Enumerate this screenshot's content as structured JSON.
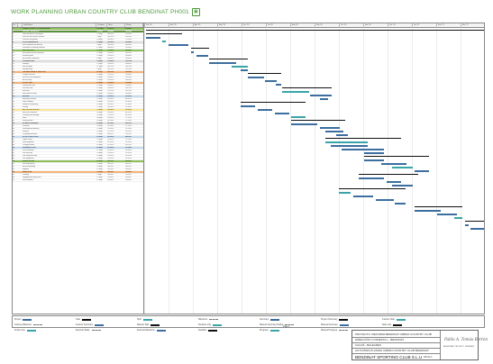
{
  "header": {
    "title": "WORK PLANNING URBAN COUNTRY CLUB BENDINAT PH001",
    "logo_glyph": "▣"
  },
  "columns": [
    "Id",
    "",
    "Task Name",
    "Duration",
    "Start",
    "Finish"
  ],
  "months": [
    "Feb '20",
    "Mar '20",
    "Apr '20",
    "May '20",
    "Jun '20",
    "Jul '20",
    "Aug '20",
    "Sep '20",
    "Oct '20",
    "Nov '20",
    "Dec '20",
    "Jan '21",
    "Feb '21",
    "Mar '21"
  ],
  "tasks": [
    {
      "id": "1",
      "name": "URBAN COUNTRY CLUB BENDINAT",
      "dur": "320 days",
      "start": "03/02/20",
      "end": "30/04/21",
      "style": "hl-green"
    },
    {
      "id": "2",
      "name": "PROJECT INITIATION",
      "dur": "34 days",
      "start": "03/02/20",
      "end": "19/03/20",
      "style": "hl-dgreen"
    },
    {
      "id": "3",
      "name": "Final execution of the project",
      "dur": "15 days",
      "start": "03/02/20",
      "end": "21/02/20",
      "style": ""
    },
    {
      "id": "4",
      "name": "Final fee and contract revision",
      "dur": "5 days",
      "start": "24/02/20",
      "end": "28/02/20",
      "style": ""
    },
    {
      "id": "5",
      "name": "Licences and permits",
      "dur": "20 days",
      "start": "02/03/20",
      "end": "27/03/20",
      "style": ""
    },
    {
      "id": "6",
      "name": "SITE PREPARATION",
      "dur": "18 days",
      "start": "30/03/20",
      "end": "22/04/20",
      "style": "hl-grey"
    },
    {
      "id": "7",
      "name": "Site installation and fencing",
      "dur": "5 days",
      "start": "30/03/20",
      "end": "03/04/20",
      "style": ""
    },
    {
      "id": "8",
      "name": "Demolition of existing elements",
      "dur": "12 days",
      "start": "06/04/20",
      "end": "21/04/20",
      "style": ""
    },
    {
      "id": "9",
      "name": "EARTHWORKS",
      "dur": "35 days",
      "start": "22/04/20",
      "end": "09/06/20",
      "style": "hl-green"
    },
    {
      "id": "10",
      "name": "Excavation and site clearance",
      "dur": "25 days",
      "start": "22/04/20",
      "end": "26/05/20",
      "style": ""
    },
    {
      "id": "11",
      "name": "Retaining walls",
      "dur": "15 days",
      "start": "20/05/20",
      "end": "09/06/20",
      "style": ""
    },
    {
      "id": "12",
      "name": "Backfill and compaction",
      "dur": "8 days",
      "start": "01/06/20",
      "end": "10/06/20",
      "style": ""
    },
    {
      "id": "13",
      "name": "FOUNDATIONS",
      "dur": "30 days",
      "start": "10/06/20",
      "end": "21/07/20",
      "style": "hl-grey"
    },
    {
      "id": "14",
      "name": "Footings",
      "dur": "15 days",
      "start": "10/06/20",
      "end": "30/06/20",
      "style": ""
    },
    {
      "id": "15",
      "name": "Slab on grade",
      "dur": "12 days",
      "start": "01/07/20",
      "end": "16/07/20",
      "style": ""
    },
    {
      "id": "16",
      "name": "Waterproofing",
      "dur": "6 days",
      "start": "14/07/20",
      "end": "21/07/20",
      "style": ""
    },
    {
      "id": "17",
      "name": "CARPARK AREA & SERVICES",
      "dur": "45 days",
      "start": "22/07/20",
      "end": "22/09/20",
      "style": "hl-orange"
    },
    {
      "id": "18",
      "name": "Carpark structure",
      "dur": "25 days",
      "start": "22/07/20",
      "end": "25/08/20",
      "style": ""
    },
    {
      "id": "19",
      "name": "Services and installations",
      "dur": "20 days",
      "start": "26/08/20",
      "end": "22/09/20",
      "style": ""
    },
    {
      "id": "20",
      "name": "Access ramp",
      "dur": "10 days",
      "start": "07/09/20",
      "end": "18/09/20",
      "style": ""
    },
    {
      "id": "21",
      "name": "STRUCTURE",
      "dur": "60 days",
      "start": "01/06/20",
      "end": "21/08/20",
      "style": "hl-orange"
    },
    {
      "id": "22",
      "name": "Ground floor slab",
      "dur": "15 days",
      "start": "01/06/20",
      "end": "19/06/20",
      "style": ""
    },
    {
      "id": "23",
      "name": "First floor slab",
      "dur": "15 days",
      "start": "22/06/20",
      "end": "10/07/20",
      "style": ""
    },
    {
      "id": "24",
      "name": "Roof slab",
      "dur": "15 days",
      "start": "13/07/20",
      "end": "31/07/20",
      "style": ""
    },
    {
      "id": "25",
      "name": "Stairs and lift shafts",
      "dur": "14 days",
      "start": "03/08/20",
      "end": "20/08/20",
      "style": ""
    },
    {
      "id": "26",
      "name": "FAÇADE",
      "dur": "50 days",
      "start": "03/08/20",
      "end": "09/10/20",
      "style": "hl-blue"
    },
    {
      "id": "27",
      "name": "Masonry enclosure",
      "dur": "25 days",
      "start": "03/08/20",
      "end": "04/09/20",
      "style": ""
    },
    {
      "id": "28",
      "name": "Stone cladding",
      "dur": "20 days",
      "start": "07/09/20",
      "end": "02/10/20",
      "style": ""
    },
    {
      "id": "29",
      "name": "Windows and glazing",
      "dur": "18 days",
      "start": "14/09/20",
      "end": "07/10/20",
      "style": ""
    },
    {
      "id": "30",
      "name": "Roofing",
      "dur": "12 days",
      "start": "28/09/20",
      "end": "13/10/20",
      "style": ""
    },
    {
      "id": "31",
      "name": "MEP INSTALLATIONS",
      "dur": "70 days",
      "start": "14/09/20",
      "end": "18/12/20",
      "style": "hl-yellow"
    },
    {
      "id": "32",
      "name": "Electrical installation",
      "dur": "40 days",
      "start": "14/09/20",
      "end": "06/11/20",
      "style": ""
    },
    {
      "id": "33",
      "name": "Plumbing and drainage",
      "dur": "35 days",
      "start": "21/09/20",
      "end": "06/11/20",
      "style": ""
    },
    {
      "id": "34",
      "name": "HVAC",
      "dur": "40 days",
      "start": "05/10/20",
      "end": "27/11/20",
      "style": ""
    },
    {
      "id": "35",
      "name": "Fire protection",
      "dur": "20 days",
      "start": "02/11/20",
      "end": "27/11/20",
      "style": ""
    },
    {
      "id": "36",
      "name": "INTERIOR FINISHES",
      "dur": "60 days",
      "start": "02/11/20",
      "end": "22/01/21",
      "style": "hl-grey"
    },
    {
      "id": "37",
      "name": "Partitions",
      "dur": "20 days",
      "start": "02/11/20",
      "end": "27/11/20",
      "style": ""
    },
    {
      "id": "38",
      "name": "Plastering and painting",
      "dur": "25 days",
      "start": "23/11/20",
      "end": "25/12/20",
      "style": ""
    },
    {
      "id": "39",
      "name": "Flooring",
      "dur": "20 days",
      "start": "07/12/20",
      "end": "01/01/21",
      "style": ""
    },
    {
      "id": "40",
      "name": "Carpentry and doors",
      "dur": "15 days",
      "start": "04/01/21",
      "end": "22/01/21",
      "style": ""
    },
    {
      "id": "41",
      "name": "SPORTS FACILITIES",
      "dur": "55 days",
      "start": "26/10/20",
      "end": "08/01/21",
      "style": "hl-blue"
    },
    {
      "id": "42",
      "name": "Paddle courts",
      "dur": "25 days",
      "start": "26/10/20",
      "end": "27/11/20",
      "style": ""
    },
    {
      "id": "43",
      "name": "Gym equipment",
      "dur": "15 days",
      "start": "30/11/20",
      "end": "18/12/20",
      "style": ""
    },
    {
      "id": "44",
      "name": "Changing rooms",
      "dur": "20 days",
      "start": "07/12/20",
      "end": "01/01/21",
      "style": ""
    },
    {
      "id": "45",
      "name": "SWIMMING POOL",
      "dur": "60 days",
      "start": "01/10/20",
      "end": "23/12/20",
      "style": "hl-blue"
    },
    {
      "id": "46",
      "name": "Pool excavation",
      "dur": "12 days",
      "start": "01/10/20",
      "end": "16/10/20",
      "style": ""
    },
    {
      "id": "47",
      "name": "Pool structure",
      "dur": "20 days",
      "start": "19/10/20",
      "end": "13/11/20",
      "style": ""
    },
    {
      "id": "48",
      "name": "Pool lining and tiling",
      "dur": "18 days",
      "start": "16/11/20",
      "end": "09/12/20",
      "style": ""
    },
    {
      "id": "49",
      "name": "Pool equipment",
      "dur": "10 days",
      "start": "10/12/20",
      "end": "23/12/20",
      "style": ""
    },
    {
      "id": "50",
      "name": "LANDSCAPING",
      "dur": "45 days",
      "start": "04/01/21",
      "end": "05/03/21",
      "style": "hl-green"
    },
    {
      "id": "51",
      "name": "Soft landscaping",
      "dur": "25 days",
      "start": "04/01/21",
      "end": "05/02/21",
      "style": ""
    },
    {
      "id": "52",
      "name": "Hard landscaping",
      "dur": "20 days",
      "start": "01/02/21",
      "end": "26/02/21",
      "style": ""
    },
    {
      "id": "53",
      "name": "Irrigation",
      "dur": "10 days",
      "start": "22/02/21",
      "end": "05/03/21",
      "style": ""
    },
    {
      "id": "54",
      "name": "HANDOVER",
      "dur": "30 days",
      "start": "08/03/21",
      "end": "16/04/21",
      "style": "hl-orange"
    },
    {
      "id": "55",
      "name": "Cleaning",
      "dur": "5 days",
      "start": "08/03/21",
      "end": "12/03/21",
      "style": ""
    },
    {
      "id": "56",
      "name": "Snagging and inspections",
      "dur": "15 days",
      "start": "15/03/21",
      "end": "02/04/21",
      "style": ""
    },
    {
      "id": "57",
      "name": "Final handover",
      "dur": "10 days",
      "start": "05/04/21",
      "end": "16/04/21",
      "style": ""
    }
  ],
  "legend": {
    "items": [
      "Project",
      "Task",
      "Split",
      "Milestone",
      "Summary",
      "Project Summary",
      "Inactive Task",
      "Inactive Milestone",
      "Inactive Summary",
      "Manual Task",
      "Duration-only",
      "Manual Summary Rollup",
      "Manual Summary",
      "Start-only",
      "Finish-only",
      "External Tasks",
      "External Milestone",
      "Deadline",
      "Progress",
      "Manual Progress"
    ],
    "page_label": "Page 1"
  },
  "title_block": {
    "line1": "PROYECTO: REFORMA BENDINAT URBAN COUNTRY CLUB",
    "line2": "DIRECCIÓN C/ DINESTA 1 - BENDINAT",
    "line3": "CALVIÁ - BALEARES",
    "line4": "ACTIVITIES PLANING URBAN COUNTRY CLUB BENDINAT",
    "company": "BENDINAT SPORTING CLUB S.L.U",
    "escala": "ESCALA",
    "signature": "Pablo A. Tomás Bertón",
    "project_number": "BENDINAT PROJECT NUMBER"
  }
}
